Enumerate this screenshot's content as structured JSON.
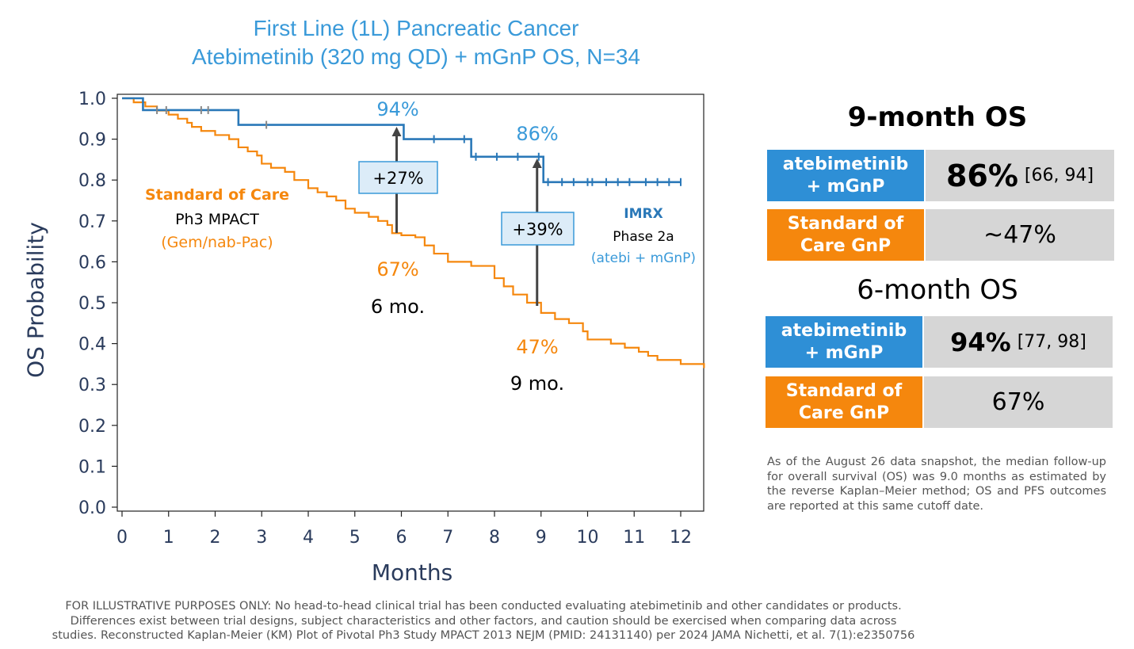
{
  "title": {
    "line1": "First Line (1L) Pancreatic Cancer",
    "line2": "Atebimetinib (320 mg QD) + mGnP OS, N=34"
  },
  "colors": {
    "imrx": "#2a78b8",
    "imrx_text": "#3a9ad9",
    "soc": "#f5870d",
    "axis": "#2a3b5c"
  },
  "chart_data": {
    "type": "line",
    "xlabel": "Months",
    "ylabel": "OS Probability",
    "xlim": [
      -0.1,
      12.5
    ],
    "ylim": [
      -0.01,
      1.01
    ],
    "xticks": [
      0,
      1,
      2,
      3,
      4,
      5,
      6,
      7,
      8,
      9,
      10,
      11,
      12
    ],
    "yticks": [
      "0.0",
      "0.1",
      "0.2",
      "0.3",
      "0.4",
      "0.5",
      "0.6",
      "0.7",
      "0.8",
      "0.9",
      "1.0"
    ],
    "series": [
      {
        "name": "IMRX",
        "steps": [
          [
            0,
            1.0
          ],
          [
            0.45,
            0.971
          ],
          [
            2.5,
            0.935
          ],
          [
            6.05,
            0.9
          ],
          [
            7.5,
            0.857
          ],
          [
            9.05,
            0.795
          ],
          [
            12.0,
            0.795
          ]
        ],
        "censors": [
          [
            0.75,
            0.971
          ],
          [
            0.95,
            0.971
          ],
          [
            1.7,
            0.971
          ],
          [
            1.85,
            0.971
          ],
          [
            3.1,
            0.935
          ],
          [
            6.7,
            0.9
          ],
          [
            7.35,
            0.9
          ],
          [
            7.6,
            0.857
          ],
          [
            8.05,
            0.857
          ],
          [
            8.5,
            0.857
          ],
          [
            8.95,
            0.857
          ],
          [
            9.15,
            0.795
          ],
          [
            9.45,
            0.795
          ],
          [
            9.7,
            0.795
          ],
          [
            10.0,
            0.795
          ],
          [
            10.1,
            0.795
          ],
          [
            10.4,
            0.795
          ],
          [
            10.65,
            0.795
          ],
          [
            10.9,
            0.795
          ],
          [
            11.25,
            0.795
          ],
          [
            11.5,
            0.795
          ],
          [
            11.75,
            0.795
          ],
          [
            12.0,
            0.795
          ]
        ]
      },
      {
        "name": "Standard of Care",
        "points": [
          [
            0,
            1.0
          ],
          [
            0.25,
            0.99
          ],
          [
            0.5,
            0.98
          ],
          [
            0.75,
            0.97
          ],
          [
            1,
            0.96
          ],
          [
            1.2,
            0.95
          ],
          [
            1.4,
            0.94
          ],
          [
            1.5,
            0.93
          ],
          [
            1.7,
            0.92
          ],
          [
            2,
            0.91
          ],
          [
            2.3,
            0.9
          ],
          [
            2.5,
            0.88
          ],
          [
            2.7,
            0.87
          ],
          [
            2.9,
            0.86
          ],
          [
            3,
            0.84
          ],
          [
            3.2,
            0.83
          ],
          [
            3.5,
            0.82
          ],
          [
            3.7,
            0.8
          ],
          [
            4,
            0.78
          ],
          [
            4.2,
            0.77
          ],
          [
            4.4,
            0.76
          ],
          [
            4.6,
            0.75
          ],
          [
            4.8,
            0.73
          ],
          [
            5,
            0.72
          ],
          [
            5.3,
            0.71
          ],
          [
            5.5,
            0.7
          ],
          [
            5.7,
            0.69
          ],
          [
            5.8,
            0.67
          ],
          [
            6,
            0.665
          ],
          [
            6.3,
            0.66
          ],
          [
            6.5,
            0.64
          ],
          [
            6.7,
            0.62
          ],
          [
            7,
            0.6
          ],
          [
            7.5,
            0.59
          ],
          [
            7.8,
            0.59
          ],
          [
            8,
            0.56
          ],
          [
            8.2,
            0.54
          ],
          [
            8.4,
            0.52
          ],
          [
            8.7,
            0.5
          ],
          [
            9,
            0.475
          ],
          [
            9.3,
            0.46
          ],
          [
            9.6,
            0.45
          ],
          [
            9.9,
            0.43
          ],
          [
            10,
            0.41
          ],
          [
            10.5,
            0.4
          ],
          [
            10.8,
            0.39
          ],
          [
            11.1,
            0.38
          ],
          [
            11.3,
            0.37
          ],
          [
            11.5,
            0.36
          ],
          [
            12,
            0.35
          ],
          [
            12.5,
            0.34
          ]
        ]
      }
    ],
    "annotations": {
      "imrx_6mo": "94%",
      "imrx_9mo": "86%",
      "soc_6mo": "67%",
      "soc_9mo": "47%",
      "diff_6mo": "+27%",
      "diff_9mo": "+39%",
      "mo6": "6 mo.",
      "mo9": "9 mo.",
      "soc_name": "Standard of Care",
      "soc_study": "Ph3 MPACT",
      "soc_regimen": "(Gem/nab-Pac)",
      "imrx_name": "IMRX",
      "imrx_phase": "Phase 2a",
      "imrx_regimen": "(atebi + mGnP)"
    }
  },
  "sidebar": {
    "os9_heading": "9-month OS",
    "os9_atebi_label_1": "atebimetinib",
    "os9_atebi_label_2": "+ mGnP",
    "os9_atebi_value": "86%",
    "os9_atebi_ci": "[66, 94]",
    "os9_soc_label_1": "Standard of",
    "os9_soc_label_2": "Care GnP",
    "os9_soc_value": "~47%",
    "os6_heading": "6-month OS",
    "os6_atebi_label_1": "atebimetinib",
    "os6_atebi_label_2": "+ mGnP",
    "os6_atebi_value": "94%",
    "os6_atebi_ci": "[77, 98]",
    "os6_soc_label_1": "Standard of",
    "os6_soc_label_2": "Care GnP",
    "os6_soc_value": "67%",
    "note": "As of the August 26 data snapshot, the median follow-up for overall survival (OS) was 9.0 months as estimated by the reverse Kaplan–Meier method; OS and PFS outcomes are reported at this same cutoff date."
  },
  "footer": {
    "line1": "FOR ILLUSTRATIVE PURPOSES ONLY: No head-to-head clinical trial has been conducted evaluating atebimetinib and other candidates or products.",
    "line2": "Differences exist between trial designs, subject characteristics and other factors, and caution should be exercised when comparing data across",
    "line3": "studies.  Reconstructed Kaplan-Meier (KM) Plot of Pivotal Ph3 Study MPACT 2013 NEJM (PMID: 24131140) per 2024 JAMA Nichetti, et al. 7(1):e2350756"
  }
}
